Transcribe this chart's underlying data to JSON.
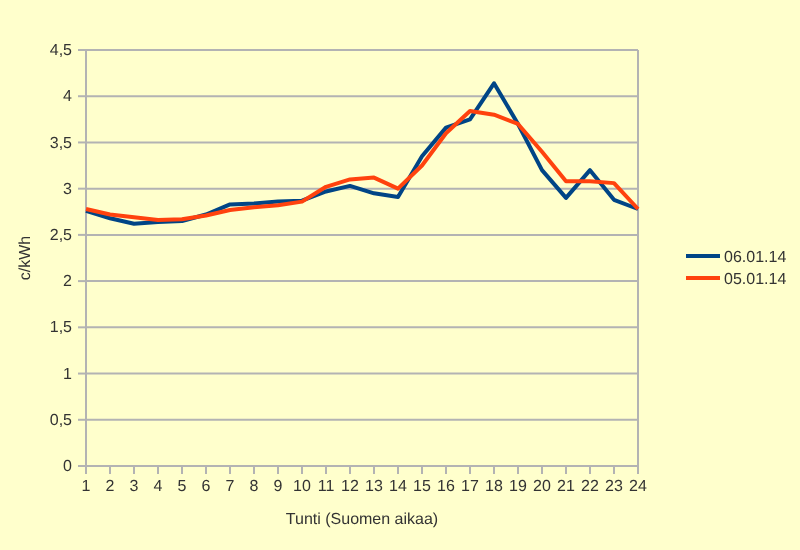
{
  "chart_data": {
    "type": "line",
    "xlabel": "Tunti (Suomen aikaa)",
    "ylabel": "c/kWh",
    "x": [
      1,
      2,
      3,
      4,
      5,
      6,
      7,
      8,
      9,
      10,
      11,
      12,
      13,
      14,
      15,
      16,
      17,
      18,
      19,
      20,
      21,
      22,
      23,
      24
    ],
    "xlim": [
      1,
      24
    ],
    "xticks": [
      1,
      2,
      3,
      4,
      5,
      6,
      7,
      8,
      9,
      10,
      11,
      12,
      13,
      14,
      15,
      16,
      17,
      18,
      19,
      20,
      21,
      22,
      23,
      24
    ],
    "ylim": [
      0,
      4.5
    ],
    "yticks": [
      {
        "value": 0,
        "label": "0"
      },
      {
        "value": 0.5,
        "label": "0,5"
      },
      {
        "value": 1,
        "label": "1"
      },
      {
        "value": 1.5,
        "label": "1,5"
      },
      {
        "value": 2,
        "label": "2"
      },
      {
        "value": 2.5,
        "label": "2,5"
      },
      {
        "value": 3,
        "label": "3"
      },
      {
        "value": 3.5,
        "label": "3,5"
      },
      {
        "value": 4,
        "label": "4"
      },
      {
        "value": 4.5,
        "label": "4,5"
      }
    ],
    "grid": "y",
    "legend": "right",
    "marker": "none",
    "line_style": "solid",
    "series": [
      {
        "name": "06.01.14",
        "color": "#004586",
        "values": [
          2.76,
          2.68,
          2.62,
          2.64,
          2.65,
          2.72,
          2.83,
          2.84,
          2.86,
          2.87,
          2.97,
          3.03,
          2.95,
          2.91,
          3.35,
          3.66,
          3.75,
          4.14,
          3.7,
          3.2,
          2.9,
          3.2,
          2.88,
          2.78
        ]
      },
      {
        "name": "05.01.14",
        "color": "#ff420e",
        "values": [
          2.78,
          2.72,
          2.69,
          2.66,
          2.67,
          2.71,
          2.77,
          2.8,
          2.82,
          2.86,
          3.02,
          3.1,
          3.12,
          3.0,
          3.25,
          3.6,
          3.84,
          3.8,
          3.7,
          3.4,
          3.08,
          3.08,
          3.06,
          2.78
        ]
      }
    ]
  }
}
